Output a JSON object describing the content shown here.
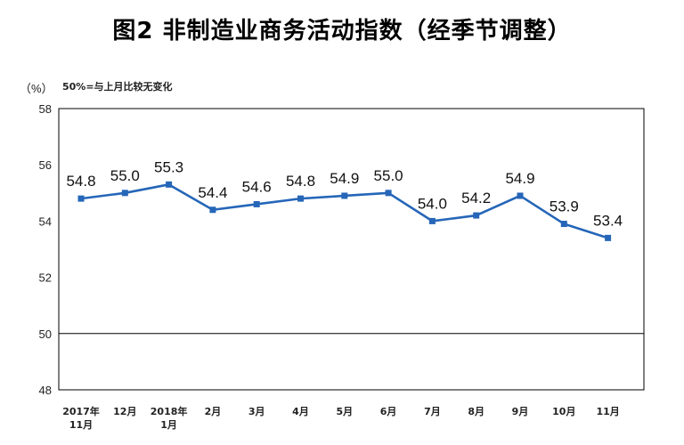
{
  "chart_data": {
    "type": "line",
    "title": "图2  非制造业商务活动指数（经季节调整）",
    "ylabel": "（%）",
    "note": "50%=与上月比较无变化",
    "ylim": [
      48,
      58
    ],
    "yticks": [
      48,
      50,
      52,
      54,
      56,
      58
    ],
    "baseline": 50,
    "categories": [
      [
        "2017年",
        "11月"
      ],
      [
        "12月"
      ],
      [
        "2018年",
        "1月"
      ],
      [
        "2月"
      ],
      [
        "3月"
      ],
      [
        "4月"
      ],
      [
        "5月"
      ],
      [
        "6月"
      ],
      [
        "7月"
      ],
      [
        "8月"
      ],
      [
        "9月"
      ],
      [
        "10月"
      ],
      [
        "11月"
      ]
    ],
    "values": [
      54.8,
      55.0,
      55.3,
      54.4,
      54.6,
      54.8,
      54.9,
      55.0,
      54.0,
      54.2,
      54.9,
      53.9,
      53.4
    ],
    "value_labels": [
      "54.8",
      "55.0",
      "55.3",
      "54.4",
      "54.6",
      "54.8",
      "54.9",
      "55.0",
      "54.0",
      "54.2",
      "54.9",
      "53.9",
      "53.4"
    ],
    "line_color": "#2566b8",
    "grid": false
  }
}
